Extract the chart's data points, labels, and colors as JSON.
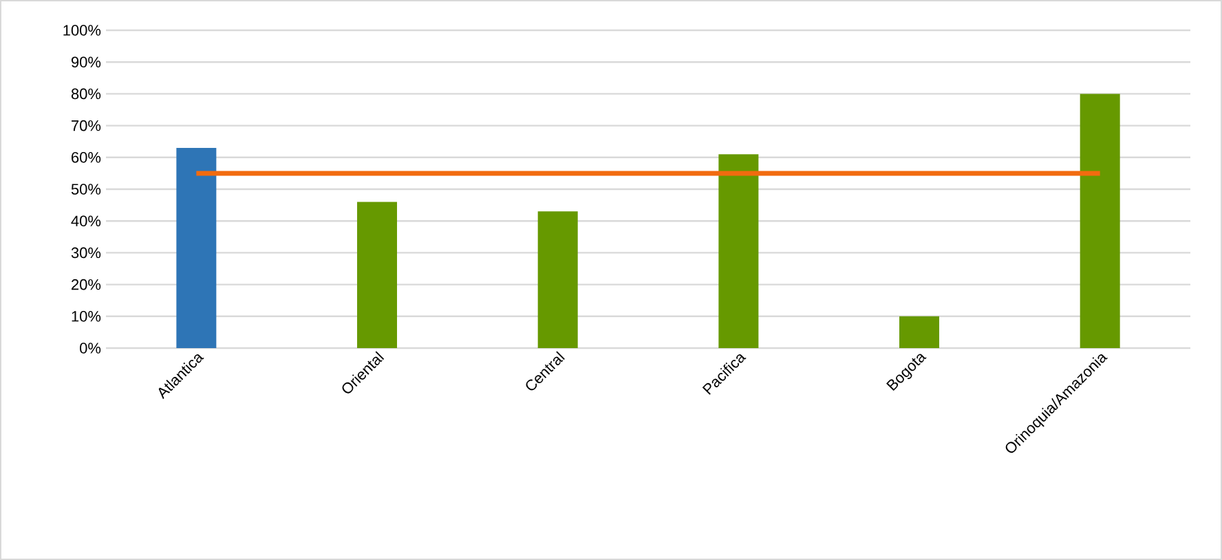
{
  "chart_data": {
    "type": "bar",
    "categories": [
      "Atlantica",
      "Oriental",
      "Central",
      "Pacifica",
      "Bogota",
      "Orinoquia/Amazonia"
    ],
    "series": [
      {
        "colors": [
          "#2e75b6",
          "#669900",
          "#669900",
          "#669900",
          "#669900",
          "#669900"
        ],
        "values": [
          63,
          46,
          43,
          61,
          10,
          80
        ]
      },
      {
        "type": "line",
        "color": "#f26b0f",
        "values": [
          55,
          55,
          55,
          55,
          55,
          55
        ]
      }
    ],
    "ylim": [
      0,
      100
    ],
    "yticks": [
      {
        "value": 0,
        "label": "0%"
      },
      {
        "value": 10,
        "label": "10%"
      },
      {
        "value": 20,
        "label": "20%"
      },
      {
        "value": 30,
        "label": "30%"
      },
      {
        "value": 40,
        "label": "40%"
      },
      {
        "value": 50,
        "label": "50%"
      },
      {
        "value": 60,
        "label": "60%"
      },
      {
        "value": 70,
        "label": "70%"
      },
      {
        "value": 80,
        "label": "80%"
      },
      {
        "value": 90,
        "label": "90%"
      },
      {
        "value": 100,
        "label": "100%"
      }
    ],
    "grid": "y",
    "marker": "none"
  }
}
